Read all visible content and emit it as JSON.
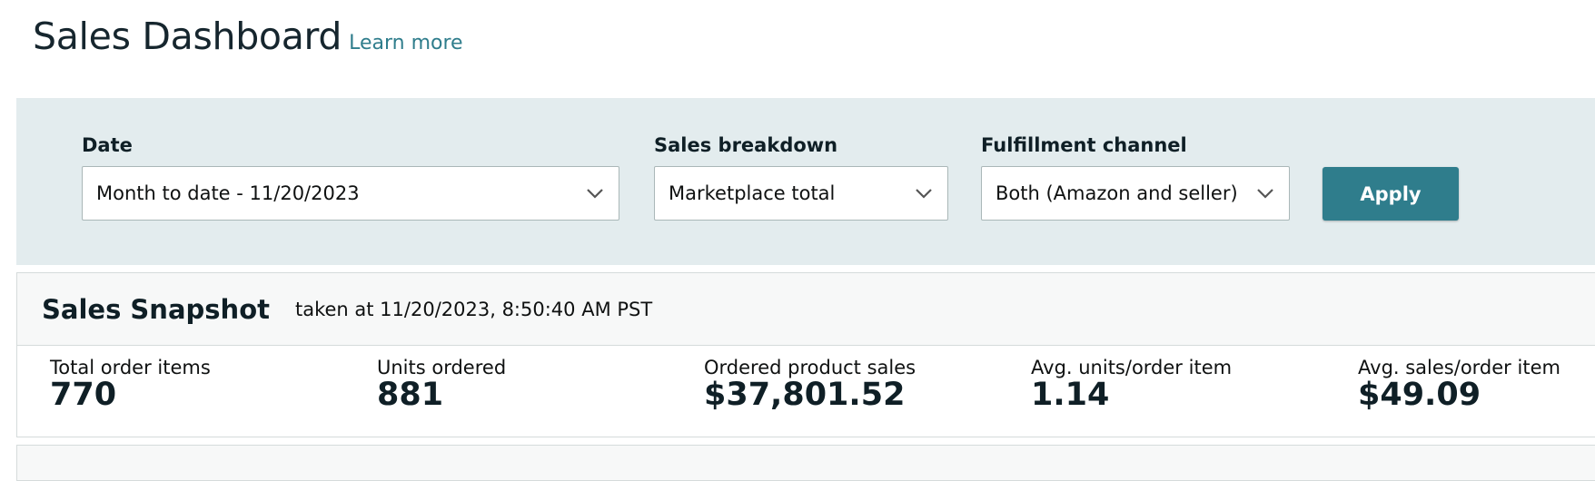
{
  "header": {
    "title": "Sales Dashboard",
    "learn_more": "Learn more"
  },
  "filters": {
    "date": {
      "label": "Date",
      "value": "Month to date - 11/20/2023"
    },
    "sales_breakdown": {
      "label": "Sales breakdown",
      "value": "Marketplace total"
    },
    "fulfillment_channel": {
      "label": "Fulfillment channel",
      "value": "Both (Amazon and seller)"
    },
    "apply_label": "Apply"
  },
  "snapshot": {
    "title": "Sales Snapshot",
    "subtitle": "taken at 11/20/2023, 8:50:40 AM PST",
    "metrics": [
      {
        "label": "Total order items",
        "value": "770"
      },
      {
        "label": "Units ordered",
        "value": "881"
      },
      {
        "label": "Ordered product sales",
        "value": "$37,801.52"
      },
      {
        "label": "Avg. units/order item",
        "value": "1.14"
      },
      {
        "label": "Avg. sales/order item",
        "value": "$49.09"
      }
    ]
  },
  "colors": {
    "accent": "#2f7d8c",
    "filter_bg": "#e3ecee",
    "heading": "#16262e"
  },
  "icons": {
    "dropdown": "chevron-down-icon"
  }
}
